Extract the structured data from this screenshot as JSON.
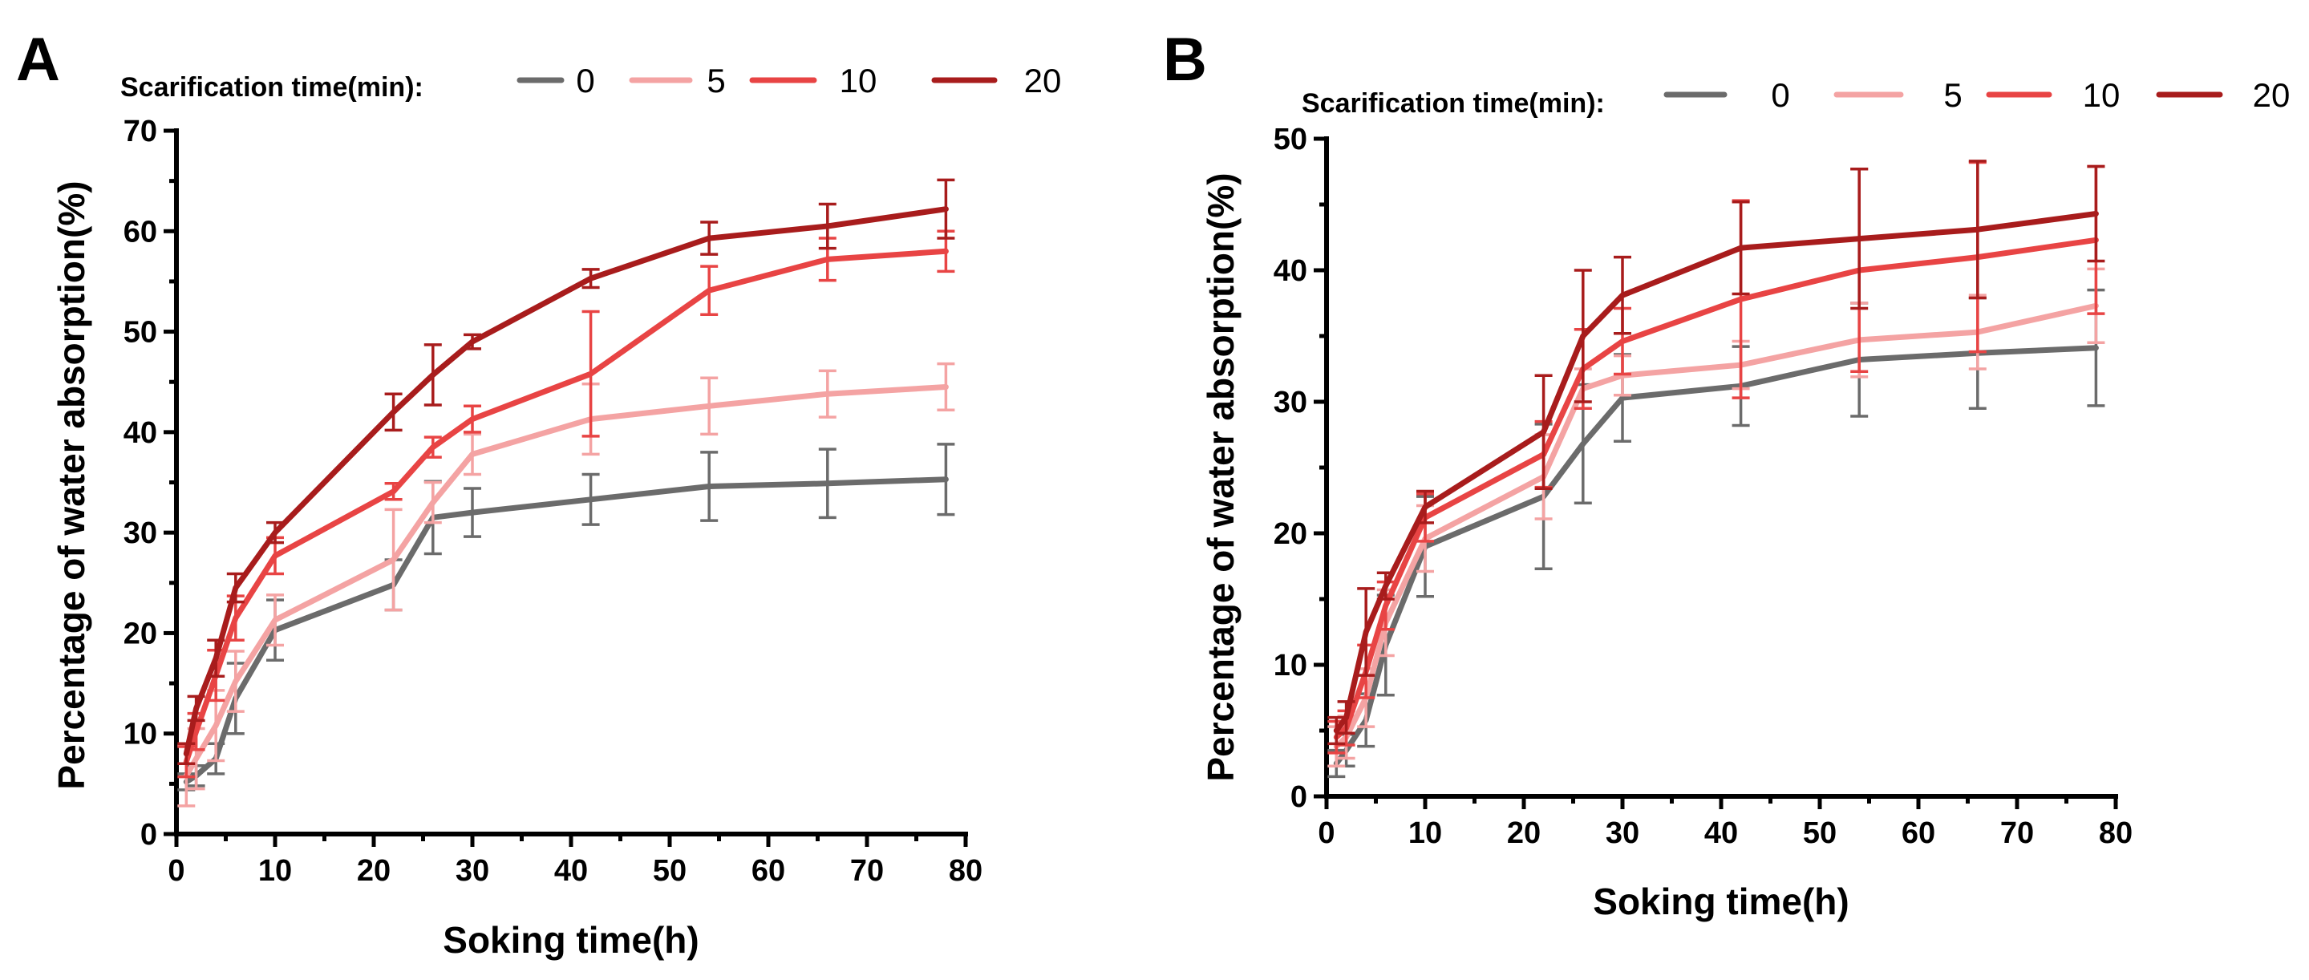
{
  "chart_data": [
    {
      "type": "line",
      "panel_label": "A",
      "legend_title": "Scarification time(min):",
      "xlabel": "Soking time(h)",
      "ylabel": "Percentage of water absorption(%)",
      "xlim": [
        0,
        80
      ],
      "ylim": [
        0,
        70
      ],
      "xticks": [
        0,
        10,
        20,
        30,
        40,
        50,
        60,
        70,
        80
      ],
      "yticks": [
        0,
        10,
        20,
        30,
        40,
        50,
        60,
        70
      ],
      "x": [
        1,
        2,
        4,
        6,
        10,
        22,
        26,
        30,
        42,
        54,
        66,
        78
      ],
      "series": [
        {
          "name": "0",
          "color": "#6b6b6b",
          "values": [
            5.2,
            5.8,
            7.5,
            13.5,
            20.3,
            24.8,
            31.5,
            32.0,
            33.3,
            34.6,
            34.9,
            35.3
          ],
          "errors": [
            0.8,
            1.0,
            1.5,
            3.5,
            3.0,
            2.5,
            3.6,
            2.4,
            2.5,
            3.4,
            3.4,
            3.5
          ]
        },
        {
          "name": "5",
          "color": "#f4a3a3",
          "values": [
            5.8,
            7.5,
            10.8,
            15.2,
            21.3,
            27.3,
            33.0,
            37.8,
            41.3,
            42.6,
            43.8,
            44.5
          ],
          "errors": [
            3.0,
            3.0,
            3.5,
            3.0,
            2.5,
            5.0,
            2.0,
            2.0,
            3.5,
            2.8,
            2.3,
            2.3
          ]
        },
        {
          "name": "10",
          "color": "#e84444",
          "values": [
            7.2,
            10.2,
            15.8,
            21.5,
            27.7,
            34.1,
            38.5,
            41.3,
            45.8,
            54.1,
            57.2,
            58.0
          ],
          "errors": [
            1.5,
            1.8,
            2.5,
            2.2,
            1.8,
            0.8,
            1.0,
            1.3,
            6.2,
            2.4,
            2.1,
            2.0
          ]
        },
        {
          "name": "20",
          "color": "#a81c1c",
          "values": [
            8.0,
            12.5,
            17.5,
            24.5,
            30.0,
            42.0,
            45.7,
            49.0,
            55.3,
            59.3,
            60.5,
            62.2
          ],
          "errors": [
            1.0,
            1.2,
            1.8,
            1.4,
            1.0,
            1.8,
            3.0,
            0.7,
            0.9,
            1.6,
            2.2,
            2.9
          ]
        }
      ]
    },
    {
      "type": "line",
      "panel_label": "B",
      "legend_title": "Scarification time(min):",
      "xlabel": "Soking time(h)",
      "ylabel": "Percentage of water absorption(%)",
      "xlim": [
        0,
        80
      ],
      "ylim": [
        0,
        50
      ],
      "xticks": [
        0,
        10,
        20,
        30,
        40,
        50,
        60,
        70,
        80
      ],
      "yticks": [
        0,
        10,
        20,
        30,
        40,
        50
      ],
      "x": [
        1,
        2,
        4,
        6,
        10,
        22,
        26,
        30,
        42,
        54,
        66,
        78
      ],
      "series": [
        {
          "name": "0",
          "color": "#6b6b6b",
          "values": [
            2.5,
            3.5,
            5.8,
            11.5,
            19.0,
            22.8,
            26.8,
            30.3,
            31.2,
            33.2,
            33.7,
            34.1
          ],
          "errors": [
            1.0,
            1.2,
            2.0,
            3.8,
            3.8,
            5.5,
            4.5,
            3.3,
            3.0,
            4.3,
            4.2,
            4.4
          ]
        },
        {
          "name": "5",
          "color": "#f4a3a3",
          "values": [
            3.8,
            4.5,
            7.5,
            13.2,
            19.6,
            24.3,
            31.0,
            32.0,
            32.8,
            34.7,
            35.3,
            37.3
          ],
          "errors": [
            1.5,
            1.6,
            2.2,
            2.5,
            2.5,
            3.2,
            1.5,
            1.5,
            1.8,
            2.8,
            2.8,
            2.8
          ]
        },
        {
          "name": "10",
          "color": "#e84444",
          "values": [
            4.5,
            5.2,
            9.5,
            14.5,
            21.2,
            26.0,
            32.5,
            34.6,
            37.8,
            40.0,
            41.0,
            42.3
          ],
          "errors": [
            1.2,
            1.3,
            2.0,
            1.8,
            1.8,
            2.5,
            3.0,
            2.5,
            7.5,
            7.7,
            7.2,
            5.6
          ]
        },
        {
          "name": "20",
          "color": "#a81c1c",
          "values": [
            5.0,
            6.0,
            12.5,
            16.0,
            22.0,
            27.7,
            35.0,
            38.1,
            41.7,
            42.4,
            43.1,
            44.3
          ],
          "errors": [
            1.0,
            1.2,
            3.3,
            1.0,
            1.2,
            4.3,
            5.0,
            2.9,
            3.5,
            5.3,
            5.2,
            3.6
          ]
        }
      ]
    }
  ]
}
